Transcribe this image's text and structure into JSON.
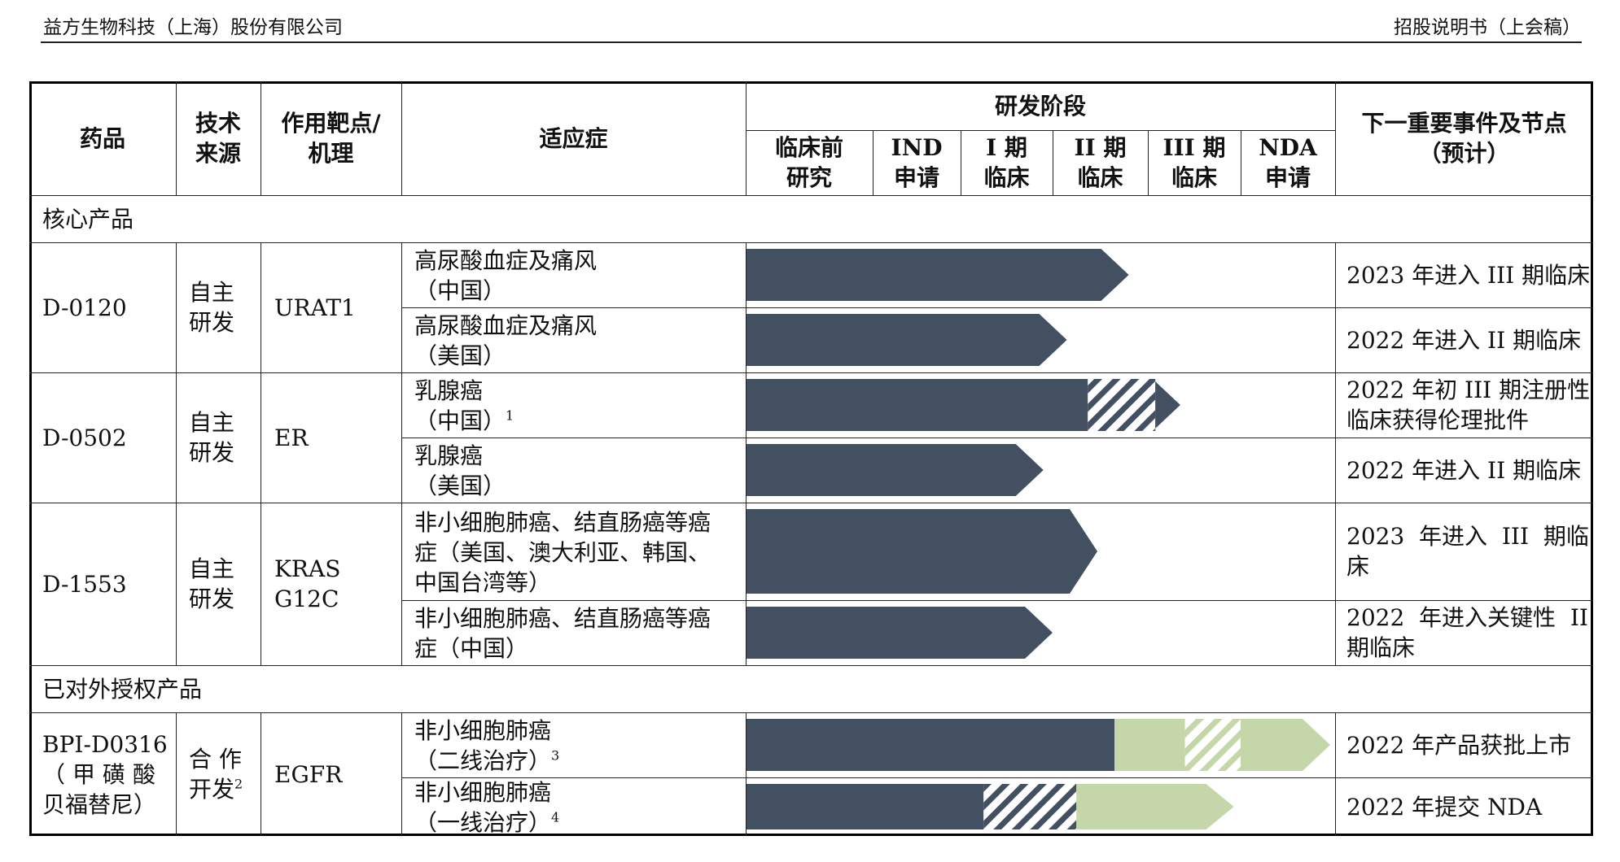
{
  "header": {
    "company": "益方生物科技（上海）股份有限公司",
    "doc": "招股说明书（上会稿）"
  },
  "table": {
    "headers": {
      "drug": "药品",
      "tech_line1": "技术",
      "tech_line2": "来源",
      "target_line1": "作用靶点/",
      "target_line2": "机理",
      "indication": "适应症",
      "rd_stage": "研发阶段",
      "stages": [
        {
          "l1": "临床前",
          "l2": "研究"
        },
        {
          "l1": "IND",
          "l2": "申请"
        },
        {
          "l1": "I 期",
          "l2": "临床"
        },
        {
          "l1": "II 期",
          "l2": "临床"
        },
        {
          "l1": "III 期",
          "l2": "临床"
        },
        {
          "l1": "NDA",
          "l2": "申请"
        }
      ],
      "milestone_line1": "下一重要事件及节点",
      "milestone_line2": "（预计）"
    },
    "sections": {
      "core": "核心产品",
      "licensed": "已对外授权产品"
    },
    "drugs": [
      {
        "name": "D-0120",
        "source_l1": "自主",
        "source_l2": "研发",
        "target_l1": "URAT1",
        "target_l2": ""
      },
      {
        "name": "D-0502",
        "source_l1": "自主",
        "source_l2": "研发",
        "target_l1": "ER",
        "target_l2": ""
      },
      {
        "name": "D-1553",
        "source_l1": "自主",
        "source_l2": "研发",
        "target_l1": "KRAS",
        "target_l2": "G12C"
      },
      {
        "name_l1": "BPI-D0316",
        "name_l2": "（甲磺酸",
        "name_l3": "贝福替尼）",
        "source_l1": "合 作",
        "source_l2": "开发",
        "source_sup": "2",
        "target_l1": "EGFR",
        "target_l2": ""
      }
    ],
    "rows": [
      {
        "ind_l1": "高尿酸血症及痛风",
        "ind_l2": "（中国）",
        "ind_l3": "",
        "sup": "",
        "milestone_l1": "2023 年进入 III 期临床",
        "milestone_l2": "",
        "progress": 3.8,
        "hatch": null,
        "licensed": false
      },
      {
        "ind_l1": "高尿酸血症及痛风",
        "ind_l2": "（美国）",
        "ind_l3": "",
        "sup": "",
        "milestone_l1": "2022 年进入 II 期临床",
        "milestone_l2": "",
        "progress": 3.15,
        "hatch": null,
        "licensed": false
      },
      {
        "ind_l1": "乳腺癌",
        "ind_l2": "（中国）",
        "ind_l3": "",
        "sup": "1",
        "milestone_l1": "2022 年初 III 期注册性",
        "milestone_l2": "临床获得伦理批件",
        "progress": 4.35,
        "hatch": [
          3.37,
          4.08
        ],
        "licensed": false
      },
      {
        "ind_l1": "乳腺癌",
        "ind_l2": "（美国）",
        "ind_l3": "",
        "sup": "",
        "milestone_l1": "2022 年进入 II 期临床",
        "milestone_l2": "",
        "progress": 2.9,
        "hatch": null,
        "licensed": false
      },
      {
        "ind_l1": "非小细胞肺癌、结直肠癌等癌",
        "ind_l2": "症（美国、澳大利亚、韩国、",
        "ind_l3": "中国台湾等）",
        "sup": "",
        "milestone_l1": "2023  年进入  III  期临",
        "milestone_l2": "床",
        "progress": 3.47,
        "hatch": null,
        "licensed": false
      },
      {
        "ind_l1": "非小细胞肺癌、结直肠癌等癌",
        "ind_l2": "症（中国）",
        "ind_l3": "",
        "sup": "",
        "milestone_l1": "2022  年进入关键性  II",
        "milestone_l2": "期临床",
        "progress": 3.0,
        "hatch": null,
        "licensed": false
      },
      {
        "ind_l1": "非小细胞肺癌",
        "ind_l2": "（二线治疗）",
        "ind_l3": "",
        "sup": "3",
        "milestone_l1": "2022 年产品获批上市",
        "milestone_l2": "",
        "progress": 6.0,
        "hatch": [
          4.4,
          5.0
        ],
        "licensed": true,
        "licensed_from": 3.65
      },
      {
        "ind_l1": "非小细胞肺癌",
        "ind_l2": "（一线治疗）",
        "ind_l3": "",
        "sup": "4",
        "milestone_l1": "2022 年提交 NDA",
        "milestone_l2": "",
        "progress": 5.1,
        "hatch": [
          2.25,
          3.25
        ],
        "licensed": true,
        "licensed_from": 3.25
      }
    ]
  },
  "colors": {
    "bar": "#435062",
    "licensed": "#c5d7a8",
    "hatch_bg": "#ffffff"
  }
}
